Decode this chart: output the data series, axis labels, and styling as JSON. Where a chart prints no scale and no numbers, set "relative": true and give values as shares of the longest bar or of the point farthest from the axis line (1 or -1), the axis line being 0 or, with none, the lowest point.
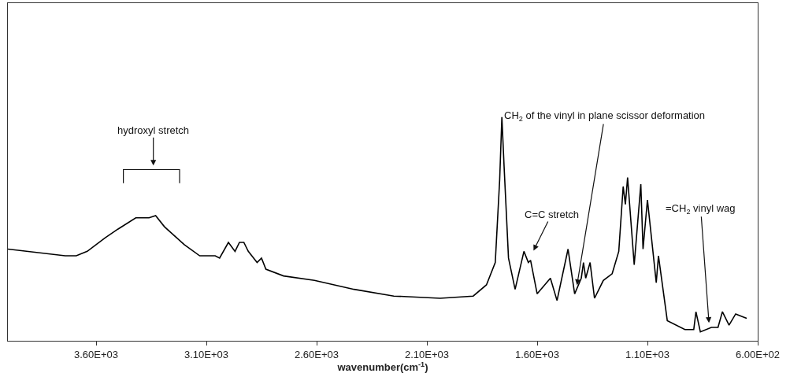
{
  "chart_data": {
    "type": "line",
    "relative": true,
    "xlabel": "wavenumber(cm$^{-1}$)",
    "xlim": [
      4000,
      600
    ],
    "xticks": [
      {
        "value": 3600,
        "label": "3.60E+03"
      },
      {
        "value": 3100,
        "label": "3.10E+03"
      },
      {
        "value": 2600,
        "label": "2.60E+03"
      },
      {
        "value": 2100,
        "label": "2.10E+03"
      },
      {
        "value": 1600,
        "label": "1.60E+03"
      },
      {
        "value": 1100,
        "label": "1.10E+03"
      },
      {
        "value": 600,
        "label": "6.00E+02"
      }
    ],
    "x": [
      4000,
      3740,
      3690,
      3640,
      3560,
      3500,
      3420,
      3360,
      3330,
      3290,
      3200,
      3130,
      3060,
      3040,
      3000,
      2970,
      2950,
      2930,
      2910,
      2870,
      2850,
      2830,
      2750,
      2610,
      2430,
      2250,
      2040,
      1890,
      1830,
      1790,
      1770,
      1760,
      1750,
      1730,
      1700,
      1660,
      1640,
      1630,
      1600,
      1540,
      1510,
      1460,
      1430,
      1400,
      1390,
      1380,
      1360,
      1340,
      1300,
      1260,
      1230,
      1210,
      1200,
      1190,
      1160,
      1130,
      1120,
      1100,
      1060,
      1050,
      1010,
      930,
      890,
      880,
      860,
      810,
      780,
      760,
      730,
      700,
      650
    ],
    "series": [
      {
        "color": "#000000",
        "values": [
          0.41,
          0.38,
          0.38,
          0.4,
          0.46,
          0.5,
          0.55,
          0.55,
          0.56,
          0.51,
          0.43,
          0.38,
          0.38,
          0.37,
          0.44,
          0.4,
          0.44,
          0.44,
          0.4,
          0.35,
          0.37,
          0.32,
          0.29,
          0.27,
          0.23,
          0.2,
          0.19,
          0.2,
          0.25,
          0.35,
          0.72,
          1.0,
          0.78,
          0.37,
          0.23,
          0.4,
          0.35,
          0.36,
          0.21,
          0.28,
          0.18,
          0.41,
          0.21,
          0.28,
          0.35,
          0.28,
          0.35,
          0.19,
          0.27,
          0.3,
          0.4,
          0.69,
          0.61,
          0.73,
          0.34,
          0.7,
          0.41,
          0.63,
          0.26,
          0.38,
          0.09,
          0.05,
          0.05,
          0.13,
          0.04,
          0.06,
          0.06,
          0.13,
          0.07,
          0.12,
          0.1
        ]
      }
    ],
    "annotations": [
      "hydroxyl stretch",
      "C=C stretch",
      "CH$_{2}$ of the vinyl in plane scissor deformation",
      "=CH$_{2}$ vinyl wag"
    ],
    "line_style": "solid"
  }
}
